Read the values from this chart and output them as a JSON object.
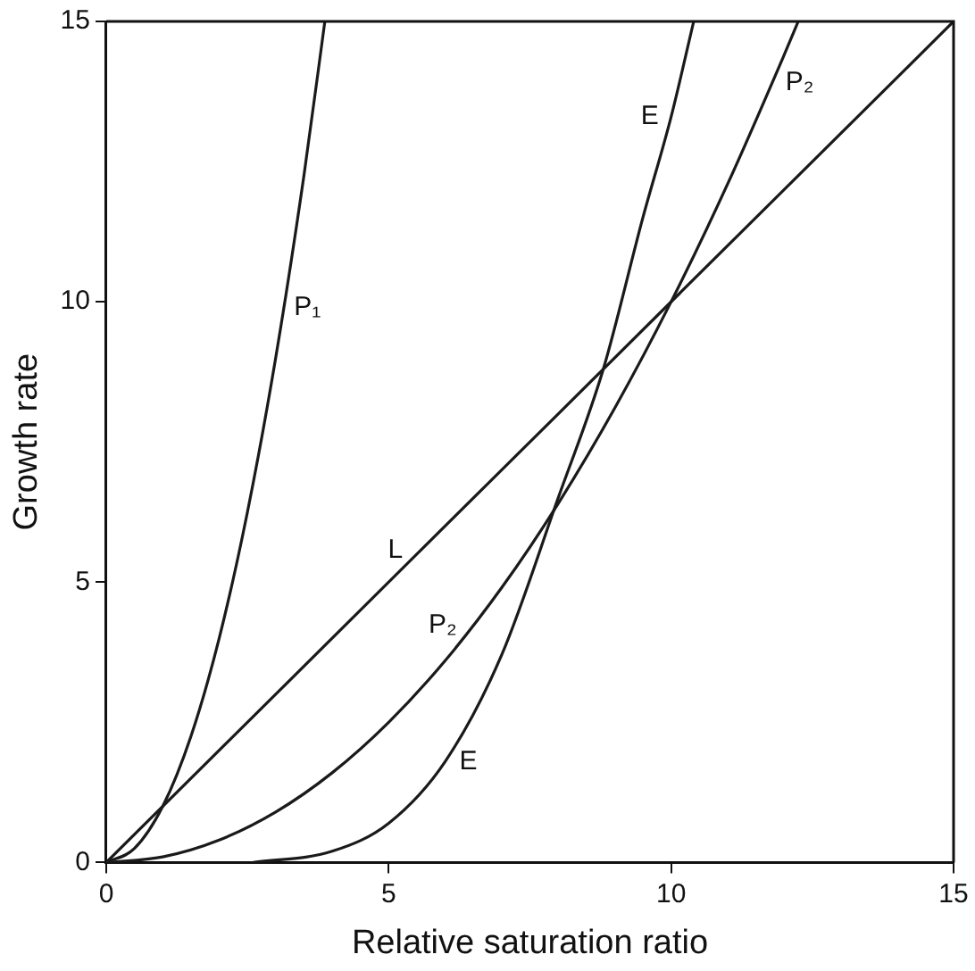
{
  "chart_data": {
    "type": "line",
    "xlabel": "Relative saturation ratio",
    "ylabel": "Growth rate",
    "xlim": [
      0,
      15
    ],
    "ylim": [
      0,
      15
    ],
    "xticks": [
      0,
      5,
      10,
      15
    ],
    "yticks": [
      0,
      5,
      10,
      15
    ],
    "grid": false,
    "legend": false,
    "marker": "none",
    "line_style": "solid",
    "series": [
      {
        "color": "#1a1a1a",
        "x": [
          0,
          0.5,
          1,
          1.5,
          2,
          2.5,
          3,
          3.5,
          3.87
        ],
        "values": [
          0,
          0.25,
          1,
          2.25,
          4,
          6.25,
          9,
          12.25,
          15
        ]
      },
      {
        "color": "#1a1a1a",
        "x": [
          0,
          1,
          2,
          3,
          4,
          5,
          6,
          7,
          8,
          9,
          10,
          11,
          12,
          12.25
        ],
        "values": [
          0,
          0.1,
          0.4,
          0.9,
          1.6,
          2.5,
          3.6,
          4.9,
          6.4,
          8.1,
          10,
          12.1,
          14.4,
          15
        ]
      },
      {
        "color": "#1a1a1a",
        "x": [
          0,
          15
        ],
        "values": [
          0,
          15
        ]
      },
      {
        "color": "#1a1a1a",
        "x": [
          2.6,
          4,
          5,
          6,
          7,
          8,
          8.8,
          9.5,
          10,
          10.4
        ],
        "values": [
          0,
          0.2,
          0.7,
          1.8,
          3.7,
          6.5,
          8.8,
          11.5,
          13.3,
          15
        ]
      }
    ],
    "annotations": [
      {
        "text": "P₁",
        "x": 3.15,
        "y": 9.9
      },
      {
        "text": "P₂",
        "x": 6.4,
        "y": 4.1
      },
      {
        "text": "P₂",
        "x": 11.8,
        "y": 13.9
      },
      {
        "text": "L",
        "x": 5.5,
        "y": 5.5
      },
      {
        "text": "E",
        "x": 6,
        "y": 1.8
      },
      {
        "text": "E",
        "x": 10,
        "y": 13.3
      }
    ]
  }
}
